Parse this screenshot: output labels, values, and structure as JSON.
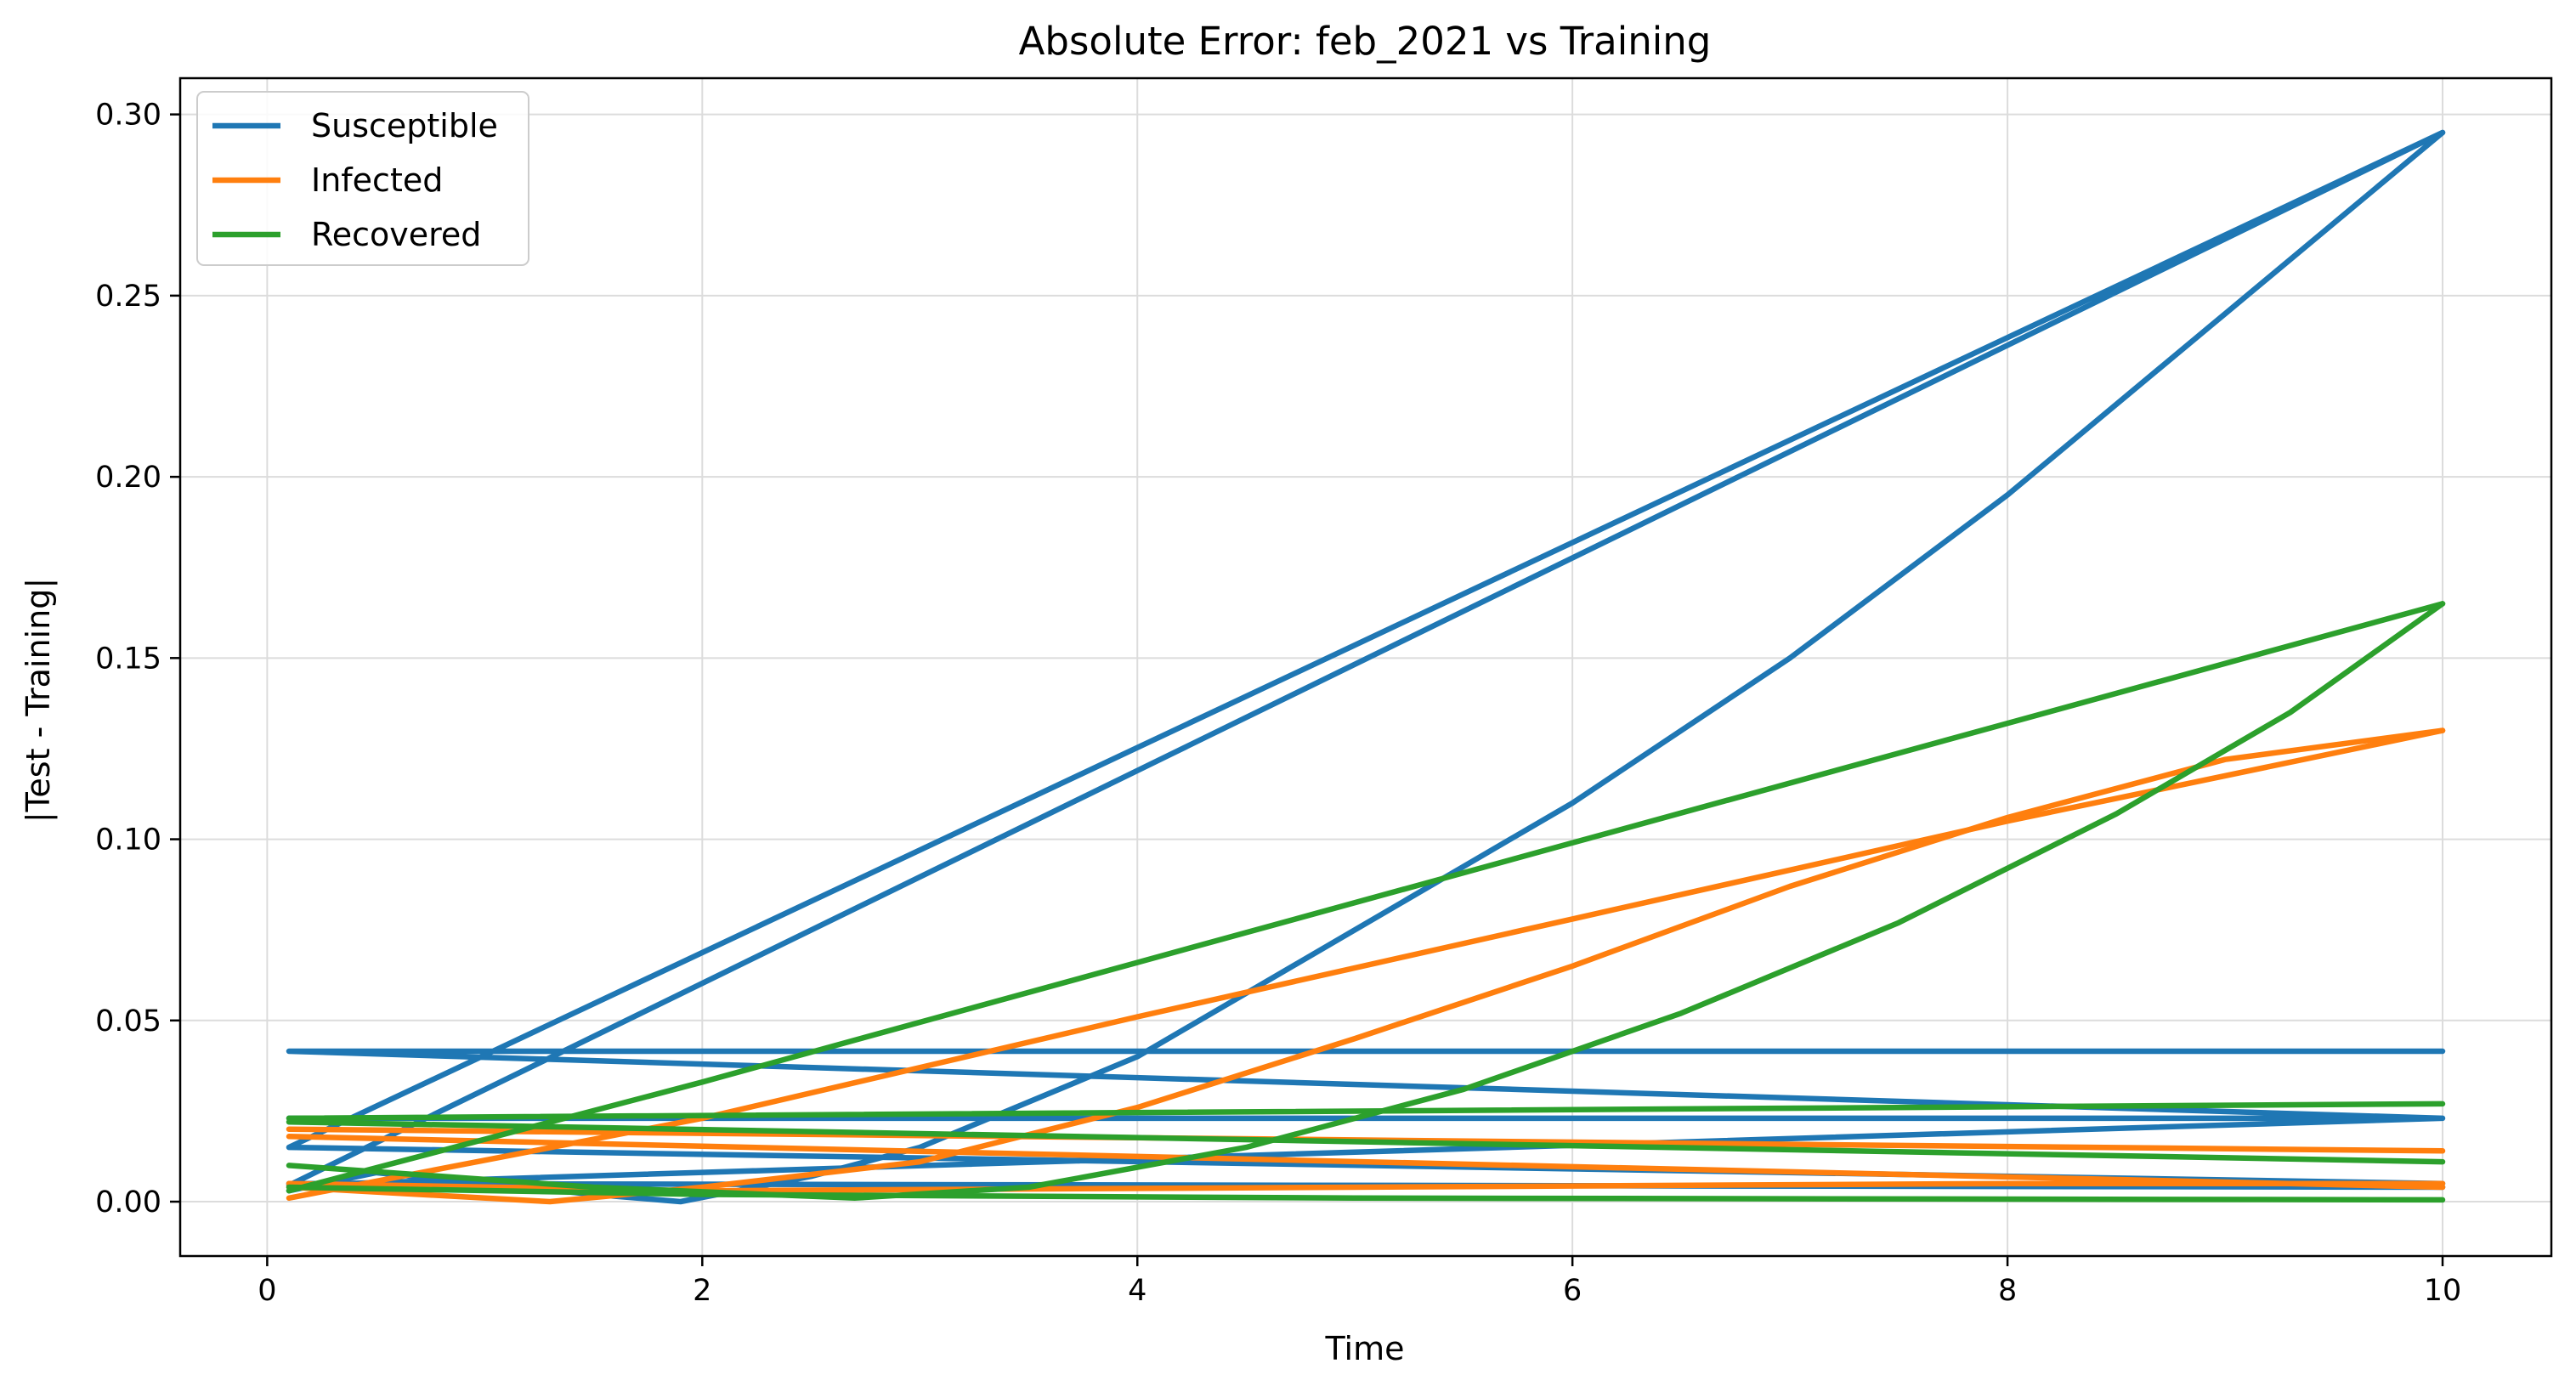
{
  "chart_data": {
    "type": "line",
    "title": "Absolute Error: feb_2021 vs Training",
    "xlabel": "Time",
    "ylabel": "|Test - Training|",
    "xlim": [
      -0.4,
      10.5
    ],
    "ylim": [
      -0.015,
      0.31
    ],
    "xticks": [
      0,
      2,
      4,
      6,
      8,
      10
    ],
    "xtick_labels": [
      "0",
      "2",
      "4",
      "6",
      "8",
      "10"
    ],
    "yticks": [
      0.0,
      0.05,
      0.1,
      0.15,
      0.2,
      0.25,
      0.3
    ],
    "ytick_labels": [
      "0.00",
      "0.05",
      "0.10",
      "0.15",
      "0.20",
      "0.25",
      "0.30"
    ],
    "grid": true,
    "legend_position": "upper-left",
    "legend": [
      {
        "name": "Susceptible",
        "color": "#1f77b4"
      },
      {
        "name": "Infected",
        "color": "#ff7f0e"
      },
      {
        "name": "Recovered",
        "color": "#2ca02c"
      }
    ],
    "series": [
      {
        "name": "Susceptible",
        "color": "#1f77b4",
        "x": [
          0.1,
          10,
          0.1,
          10,
          0.1,
          10,
          0.1,
          10,
          0.1,
          10
        ],
        "values": [
          0.0415,
          0.0415,
          0.0415,
          0.023,
          0.023,
          0.023,
          0.0045,
          0.295,
          0.015,
          0.005
        ]
      },
      {
        "name": "Susceptible",
        "color": "#1f77b4",
        "x": [
          0.1,
          0.5,
          1.0,
          1.5,
          1.9,
          2.5,
          3.0,
          4.0,
          5.0,
          6.0,
          7.0,
          8.0,
          9.0,
          10.0
        ],
        "values": [
          0.003,
          0.008,
          0.005,
          0.002,
          0.0,
          0.007,
          0.015,
          0.04,
          0.075,
          0.11,
          0.15,
          0.195,
          0.245,
          0.295
        ]
      },
      {
        "name": "Susceptible",
        "color": "#1f77b4",
        "x": [
          0.1,
          10.0
        ],
        "values": [
          0.005,
          0.004
        ]
      },
      {
        "name": "Infected",
        "color": "#ff7f0e",
        "x": [
          0.1,
          1.3,
          2.0,
          3.0,
          4.0,
          5.0,
          6.0,
          7.0,
          8.0,
          9.0,
          10.0
        ],
        "values": [
          0.004,
          0.0,
          0.004,
          0.011,
          0.026,
          0.045,
          0.065,
          0.087,
          0.106,
          0.122,
          0.13
        ]
      },
      {
        "name": "Infected",
        "color": "#ff7f0e",
        "x": [
          0.1,
          2.0,
          4.0,
          6.0,
          8.0,
          10.0
        ],
        "values": [
          0.001,
          0.023,
          0.051,
          0.078,
          0.105,
          0.13
        ]
      },
      {
        "name": "Infected",
        "color": "#ff7f0e",
        "x": [
          0.1,
          10.0
        ],
        "values": [
          0.02,
          0.014
        ]
      },
      {
        "name": "Infected",
        "color": "#ff7f0e",
        "x": [
          0.1,
          10.0
        ],
        "values": [
          0.018,
          0.004
        ]
      },
      {
        "name": "Infected",
        "color": "#ff7f0e",
        "x": [
          0.1,
          2.0,
          5.0,
          8.0,
          10.0
        ],
        "values": [
          0.005,
          0.003,
          0.004,
          0.005,
          0.005
        ]
      },
      {
        "name": "Recovered",
        "color": "#2ca02c",
        "x": [
          0.1,
          2.0,
          4.0,
          6.0,
          8.0,
          10.0
        ],
        "values": [
          0.003,
          0.033,
          0.066,
          0.099,
          0.132,
          0.165
        ]
      },
      {
        "name": "Recovered",
        "color": "#2ca02c",
        "x": [
          0.1,
          1.5,
          2.7,
          3.5,
          4.5,
          5.5,
          6.5,
          7.5,
          8.5,
          9.3,
          10.0
        ],
        "values": [
          0.01,
          0.004,
          0.001,
          0.004,
          0.015,
          0.031,
          0.052,
          0.077,
          0.107,
          0.135,
          0.165
        ]
      },
      {
        "name": "Recovered",
        "color": "#2ca02c",
        "x": [
          0.1,
          10.0
        ],
        "values": [
          0.023,
          0.027
        ]
      },
      {
        "name": "Recovered",
        "color": "#2ca02c",
        "x": [
          0.1,
          10.0
        ],
        "values": [
          0.022,
          0.011
        ]
      },
      {
        "name": "Recovered",
        "color": "#2ca02c",
        "x": [
          0.1,
          2.0,
          5.0,
          10.0
        ],
        "values": [
          0.004,
          0.002,
          0.001,
          0.0005
        ]
      }
    ]
  }
}
